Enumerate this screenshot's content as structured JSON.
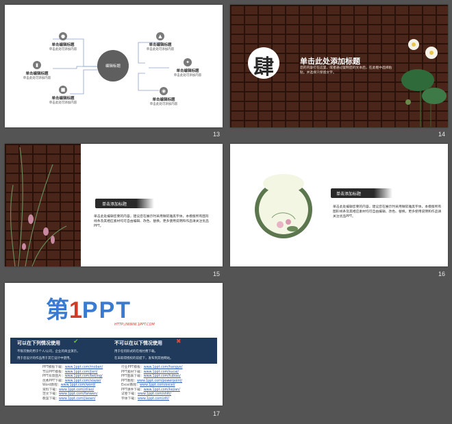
{
  "colors": {
    "background": "#545454",
    "brick": "#4a2519",
    "accent_blue": "#3a7ad0",
    "accent_red": "#d43a2a",
    "banner_navy": "#1f3a5a"
  },
  "slides": [
    {
      "number": "13",
      "center_label": "编辑标题",
      "nodes": [
        {
          "icon": "bulb-icon",
          "title": "单击编辑标题",
          "desc": "单击此处可添加内容"
        },
        {
          "icon": "chart-icon",
          "title": "单击编辑标题",
          "desc": "单击此处可添加内容"
        },
        {
          "icon": "lock-icon",
          "title": "单击编辑标题",
          "desc": "单击此处可添加内容"
        },
        {
          "icon": "flask-icon",
          "title": "单击编辑标题",
          "desc": "单击此处可添加内容"
        },
        {
          "icon": "wrench-icon",
          "title": "单击编辑标题",
          "desc": "单击此处可添加内容"
        },
        {
          "icon": "disc-icon",
          "title": "单击编辑标题",
          "desc": "单击此处可添加内容"
        }
      ]
    },
    {
      "number": "14",
      "big_char": "肆",
      "title": "单击此处添加标题",
      "body": "您的内容打在这里，或者通过复制您的文本后，在此框中选择粘贴，并选择只保留文字。"
    },
    {
      "number": "15",
      "heading": "单击添加标题",
      "body": "单击此处编辑您要的内容，建议您在展示时采用微软雅黑字体，本模版所有图形线条及其相应素材均可自由编辑、改色、替换。更多使用说明和作品请关注优品PPT。"
    },
    {
      "number": "16",
      "heading": "单击添加标题",
      "body": "单击此处编辑您要的内容，建议您在展示时采用微软雅黑字体，本模版所有图形线条及其相应素材均可自由编辑、改色、替换。更多使用说明和作品请关注优品PPT。"
    },
    {
      "number": "17",
      "logo_prefix": "第",
      "logo_num": "1",
      "logo_suffix": "PPT",
      "logo_url": "HTTP://WWW.1PPT.COM",
      "can_title": "可以在下列情况使用",
      "cannot_title": "不可以在以下情况使用",
      "can_items": [
        "不限次数的用于个人/公司，企业的商业演示。",
        "用于您设计的作品用于其它设计中使用。"
      ],
      "cannot_items": [
        "用于任何形式的在线付费下载。",
        "在未取得授权的前提下，发布到其他网站。"
      ],
      "links": [
        {
          "label": "PPT模板下载：",
          "url": "www.1ppt.com/moban/"
        },
        {
          "label": "节日PPT模板：",
          "url": "www.1ppt.com/jieri/"
        },
        {
          "label": "PPT背景图片：",
          "url": "www.1ppt.com/beijing/"
        },
        {
          "label": "优秀PPT下载：",
          "url": "www.1ppt.com/xiazai/"
        },
        {
          "label": "Word教程：",
          "url": "www.1ppt.com/word/"
        },
        {
          "label": "资料下载：",
          "url": "www.1ppt.com/ziliao/"
        },
        {
          "label": "范文下载：",
          "url": "www.1ppt.com/fanwen/"
        },
        {
          "label": "教案下载：",
          "url": "www.1ppt.com/jiaoan/"
        }
      ],
      "links2": [
        {
          "label": "行业PPT模板：",
          "url": "www.1ppt.com/hangye/"
        },
        {
          "label": "PPT素材下载：",
          "url": "www.1ppt.com/sucai/"
        },
        {
          "label": "PPT图表下载：",
          "url": "www.1ppt.com/tubiao/"
        },
        {
          "label": "PPT教程：",
          "url": "www.1ppt.com/powerpoint/"
        },
        {
          "label": "Excel教程：",
          "url": "www.1ppt.com/excel/"
        },
        {
          "label": "PPT课件下载：",
          "url": "www.1ppt.com/kejian/"
        },
        {
          "label": "试卷下载：",
          "url": "www.1ppt.com/shiti/"
        },
        {
          "label": "字体下载：",
          "url": "www.1ppt.com/ziti/"
        }
      ]
    }
  ]
}
